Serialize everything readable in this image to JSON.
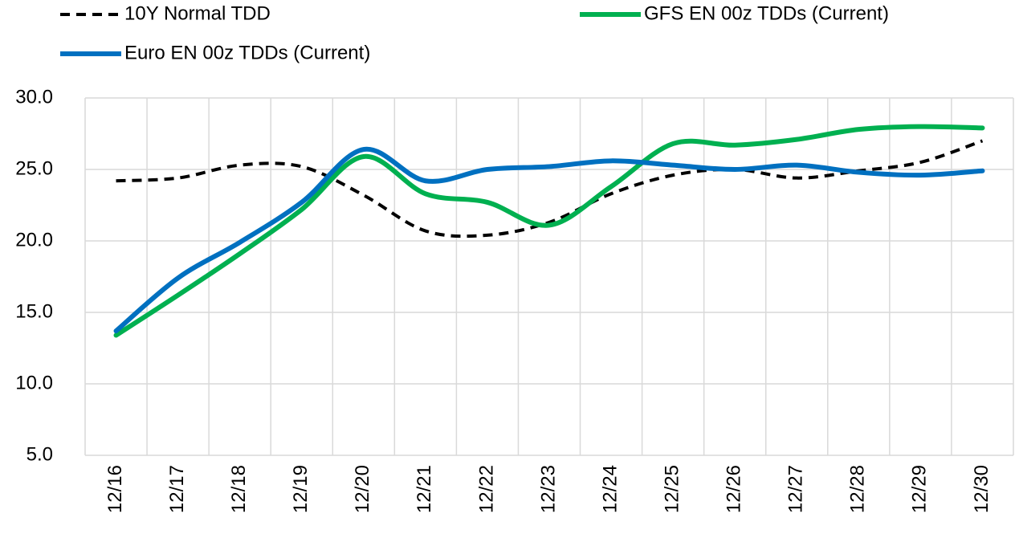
{
  "chart_data": {
    "type": "line",
    "categories": [
      "12/16",
      "12/17",
      "12/18",
      "12/19",
      "12/20",
      "12/21",
      "12/22",
      "12/23",
      "12/24",
      "12/25",
      "12/26",
      "12/27",
      "12/28",
      "12/29",
      "12/30"
    ],
    "series": [
      {
        "name": "10Y Normal TDD",
        "color": "#000000",
        "dashed": true,
        "values": [
          24.2,
          24.4,
          25.3,
          25.2,
          23.2,
          20.7,
          20.4,
          21.3,
          23.3,
          24.6,
          25.0,
          24.4,
          24.9,
          25.5,
          27.0
        ]
      },
      {
        "name": "GFS EN 00z TDDs (Current)",
        "color": "#00b050",
        "dashed": false,
        "values": [
          13.4,
          16.2,
          19.1,
          22.2,
          25.9,
          23.3,
          22.7,
          21.1,
          23.8,
          26.8,
          26.7,
          27.1,
          27.8,
          28.0,
          27.9
        ]
      },
      {
        "name": "Euro EN 00z TDDs (Current)",
        "color": "#0070c0",
        "dashed": false,
        "values": [
          13.7,
          17.4,
          19.9,
          22.7,
          26.4,
          24.2,
          25.0,
          25.2,
          25.6,
          25.3,
          25.0,
          25.3,
          24.8,
          24.6,
          24.9
        ]
      }
    ],
    "ylim": [
      5,
      30
    ],
    "yticks": [
      {
        "value": 5,
        "label": "5.0"
      },
      {
        "value": 10,
        "label": "10.0"
      },
      {
        "value": 15,
        "label": "15.0"
      },
      {
        "value": 20,
        "label": "20.0"
      },
      {
        "value": 25,
        "label": "25.0"
      },
      {
        "value": 30,
        "label": "30.0"
      }
    ],
    "grid": true
  }
}
